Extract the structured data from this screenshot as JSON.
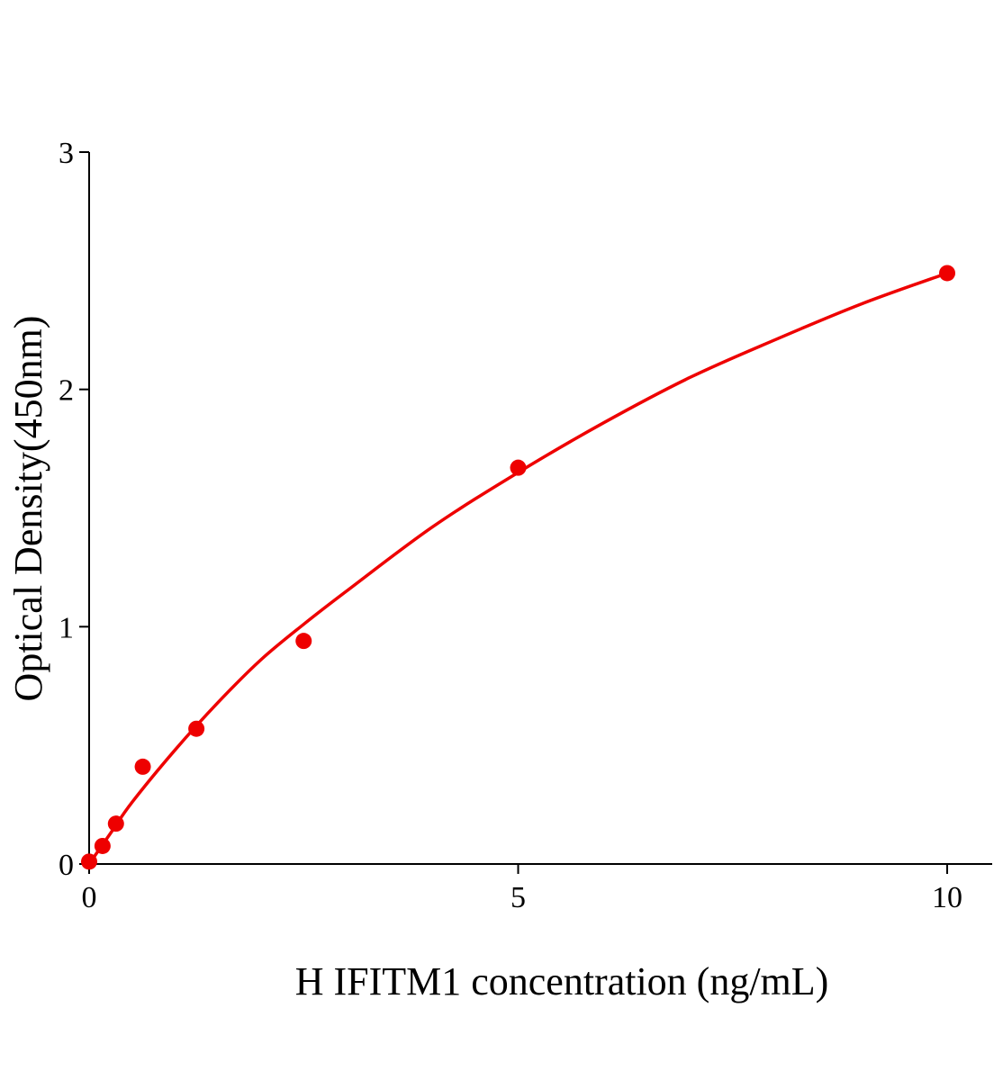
{
  "chart_data": {
    "type": "scatter",
    "title": "",
    "xlabel": "H IFITM1 concentration (ng/mL)",
    "ylabel": "Optical Density(450nm)",
    "xlim": [
      0,
      10.5
    ],
    "ylim": [
      0,
      3
    ],
    "xticks": [
      0,
      5,
      10
    ],
    "yticks": [
      0,
      1,
      2,
      3
    ],
    "xtick_labels": [
      "0",
      "5",
      "10"
    ],
    "ytick_labels": [
      "0",
      "1",
      "2",
      "3"
    ],
    "grid": false,
    "color": "#ee0000",
    "points": {
      "x": [
        0,
        0.156,
        0.3125,
        0.625,
        1.25,
        2.5,
        5,
        10
      ],
      "y": [
        0.01,
        0.076,
        0.17,
        0.41,
        0.57,
        0.94,
        1.67,
        2.49
      ]
    },
    "fit_curve": {
      "x": [
        0,
        0.25,
        0.5,
        1,
        1.5,
        2,
        2.5,
        3,
        4,
        5,
        6,
        7,
        8,
        9,
        10
      ],
      "y": [
        0,
        0.13,
        0.26,
        0.48,
        0.68,
        0.86,
        1.01,
        1.15,
        1.42,
        1.65,
        1.86,
        2.05,
        2.21,
        2.36,
        2.49
      ]
    }
  }
}
